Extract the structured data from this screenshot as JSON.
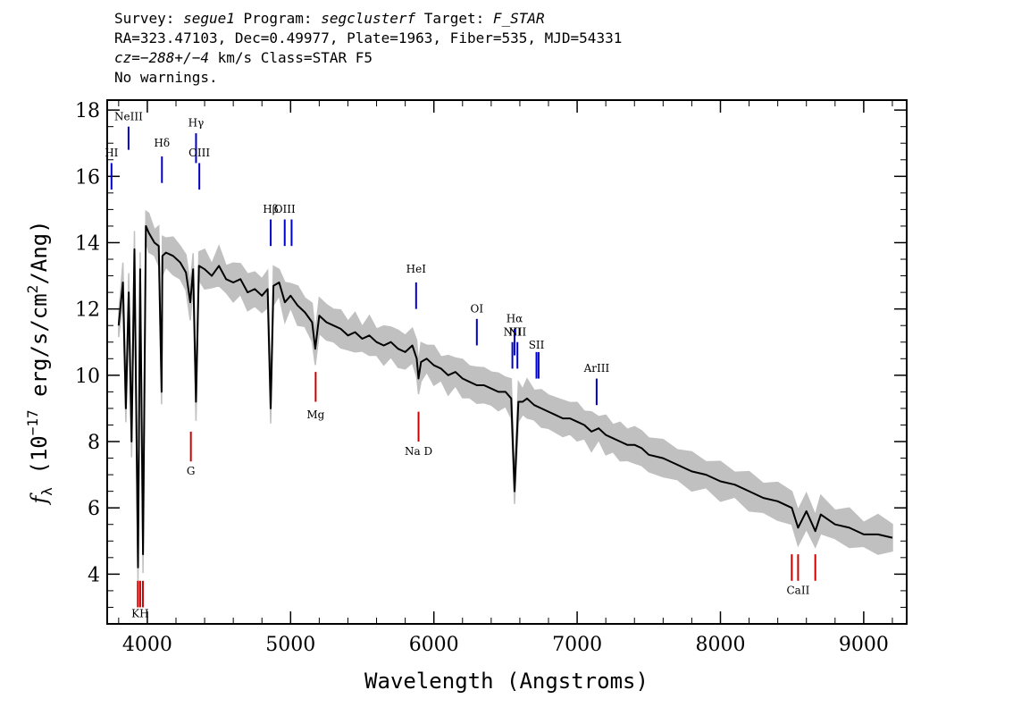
{
  "header": {
    "line1": {
      "survey_label": "Survey: ",
      "survey": "segue1",
      "program_label": " Program: ",
      "program": "segclusterf",
      "target_label": " Target: ",
      "target": "F_STAR"
    },
    "line2": "RA=323.47103, Dec=0.49977, Plate=1963, Fiber=535, MJD=54331",
    "line3": {
      "cz": "cz=−288+/−4",
      "rest": " km/s Class=STAR F5"
    },
    "line4": "No warnings."
  },
  "chart_data": {
    "type": "line",
    "xlabel": "Wavelength (Angstroms)",
    "ylabel": "f_λ (10^-17 erg/s/cm^2/Ang)",
    "xlim": [
      3720,
      9300
    ],
    "ylim": [
      2.5,
      18.3
    ],
    "xticks": [
      4000,
      5000,
      6000,
      7000,
      8000,
      9000
    ],
    "yticks": [
      4,
      6,
      8,
      10,
      12,
      14,
      16,
      18
    ],
    "series": [
      {
        "color": "#000000",
        "x": [
          3800,
          3830,
          3850,
          3870,
          3890,
          3910,
          3935,
          3950,
          3970,
          3990,
          4010,
          4050,
          4080,
          4100,
          4105,
          4130,
          4180,
          4230,
          4270,
          4300,
          4320,
          4340,
          4360,
          4400,
          4450,
          4500,
          4550,
          4600,
          4650,
          4700,
          4750,
          4800,
          4840,
          4861,
          4880,
          4920,
          4960,
          5000,
          5050,
          5100,
          5150,
          5172,
          5200,
          5250,
          5300,
          5350,
          5400,
          5450,
          5500,
          5550,
          5600,
          5650,
          5700,
          5750,
          5800,
          5850,
          5880,
          5893,
          5910,
          5950,
          6000,
          6050,
          6100,
          6150,
          6200,
          6250,
          6300,
          6350,
          6400,
          6450,
          6500,
          6540,
          6563,
          6590,
          6620,
          6650,
          6700,
          6750,
          6800,
          6850,
          6900,
          6950,
          7000,
          7050,
          7100,
          7150,
          7200,
          7250,
          7300,
          7350,
          7400,
          7450,
          7500,
          7600,
          7700,
          7800,
          7900,
          8000,
          8100,
          8200,
          8300,
          8400,
          8498,
          8542,
          8600,
          8662,
          8700,
          8800,
          8900,
          9000,
          9100,
          9200
        ],
        "y": [
          11.5,
          12.8,
          9.0,
          12.5,
          8.0,
          13.8,
          4.2,
          13.2,
          4.6,
          14.5,
          14.3,
          14.0,
          13.9,
          9.5,
          13.6,
          13.7,
          13.6,
          13.4,
          13.1,
          12.2,
          13.2,
          9.2,
          13.3,
          13.2,
          13.0,
          13.3,
          12.9,
          12.8,
          12.9,
          12.5,
          12.6,
          12.4,
          12.6,
          9.0,
          12.7,
          12.8,
          12.2,
          12.4,
          12.1,
          11.9,
          11.6,
          10.8,
          11.8,
          11.6,
          11.5,
          11.4,
          11.2,
          11.3,
          11.1,
          11.2,
          11.0,
          10.9,
          11.0,
          10.8,
          10.7,
          10.9,
          10.5,
          9.9,
          10.4,
          10.5,
          10.3,
          10.2,
          10.0,
          10.1,
          9.9,
          9.8,
          9.7,
          9.7,
          9.6,
          9.5,
          9.5,
          9.3,
          6.5,
          9.2,
          9.2,
          9.3,
          9.1,
          9.0,
          8.9,
          8.8,
          8.7,
          8.7,
          8.6,
          8.5,
          8.3,
          8.4,
          8.2,
          8.1,
          8.0,
          7.9,
          7.9,
          7.8,
          7.6,
          7.5,
          7.3,
          7.1,
          7.0,
          6.8,
          6.7,
          6.5,
          6.3,
          6.2,
          6.0,
          5.4,
          5.9,
          5.3,
          5.8,
          5.5,
          5.4,
          5.2,
          5.2,
          5.1
        ]
      }
    ],
    "lines": [
      {
        "name": "NeIII",
        "wave": 3869,
        "ylo": 16.8,
        "yhi": 17.5,
        "color": "#0000cc",
        "label_y": 17.7
      },
      {
        "name": "Hδ",
        "wave": 4102,
        "ylo": 15.8,
        "yhi": 16.6,
        "color": "#0000cc",
        "label_y": 16.9
      },
      {
        "name": "Hγ",
        "wave": 4340,
        "ylo": 16.4,
        "yhi": 17.3,
        "color": "#0000cc",
        "label_y": 17.5
      },
      {
        "name": "OIII",
        "wave": 4363,
        "ylo": 15.6,
        "yhi": 16.4,
        "color": "#0000cc",
        "label_y": 16.6
      },
      {
        "name": "Hβ",
        "wave": 4861,
        "ylo": 13.9,
        "yhi": 14.7,
        "color": "#0000cc",
        "label_y": 14.9
      },
      {
        "name": "OIII",
        "wave": 4959,
        "ylo": 13.9,
        "yhi": 14.7,
        "color": "#0000cc",
        "label_y": 14.9
      },
      {
        "name": "",
        "wave": 5007,
        "ylo": 13.9,
        "yhi": 14.7,
        "color": "#0000cc",
        "label_y": 0
      },
      {
        "name": "HeI",
        "wave": 5876,
        "ylo": 12.0,
        "yhi": 12.8,
        "color": "#0000cc",
        "label_y": 13.1
      },
      {
        "name": "OI",
        "wave": 6300,
        "ylo": 10.9,
        "yhi": 11.7,
        "color": "#0000cc",
        "label_y": 11.9
      },
      {
        "name": "NII",
        "wave": 6548,
        "ylo": 10.2,
        "yhi": 11.0,
        "color": "#0000cc",
        "label_y": 11.2
      },
      {
        "name": "Hα",
        "wave": 6563,
        "ylo": 10.6,
        "yhi": 11.4,
        "color": "#0000cc",
        "label_y": 11.6
      },
      {
        "name": "NII",
        "wave": 6583,
        "ylo": 10.2,
        "yhi": 11.0,
        "color": "#0000cc",
        "label_y": 11.2
      },
      {
        "name": "SII",
        "wave": 6716,
        "ylo": 9.9,
        "yhi": 10.7,
        "color": "#0000cc",
        "label_y": 10.8
      },
      {
        "name": "",
        "wave": 6731,
        "ylo": 9.9,
        "yhi": 10.7,
        "color": "#0000cc",
        "label_y": 0
      },
      {
        "name": "ArIII",
        "wave": 7136,
        "ylo": 9.1,
        "yhi": 9.9,
        "color": "#0000cc",
        "label_y": 10.1
      },
      {
        "name": "G",
        "wave": 4304,
        "ylo": 7.4,
        "yhi": 8.3,
        "color": "#cc0000",
        "label_y": 7.0
      },
      {
        "name": "Mg",
        "wave": 5175,
        "ylo": 9.2,
        "yhi": 10.1,
        "color": "#cc0000",
        "label_y": 8.7
      },
      {
        "name": "Na D",
        "wave": 5893,
        "ylo": 8.0,
        "yhi": 8.9,
        "color": "#cc0000",
        "label_y": 7.6
      },
      {
        "name": "KH",
        "wave": 3950,
        "ylo": 3.0,
        "yhi": 3.8,
        "color": "#cc0000",
        "label_y": 2.7
      },
      {
        "name": "",
        "wave": 3934,
        "ylo": 3.0,
        "yhi": 3.8,
        "color": "#cc0000",
        "label_y": 0
      },
      {
        "name": "",
        "wave": 3969,
        "ylo": 3.0,
        "yhi": 3.8,
        "color": "#cc0000",
        "label_y": 0
      },
      {
        "name": "CaII",
        "wave": 8542,
        "ylo": 3.8,
        "yhi": 4.6,
        "color": "#cc0000",
        "label_y": 3.4
      },
      {
        "name": "",
        "wave": 8498,
        "ylo": 3.8,
        "yhi": 4.6,
        "color": "#cc0000",
        "label_y": 0
      },
      {
        "name": "",
        "wave": 8662,
        "ylo": 3.8,
        "yhi": 4.6,
        "color": "#cc0000",
        "label_y": 0
      },
      {
        "name": "HI",
        "wave": 3750,
        "ylo": 15.6,
        "yhi": 16.4,
        "color": "#0000cc",
        "label_y": 16.6
      }
    ],
    "error_color": "#c0c0c0"
  }
}
